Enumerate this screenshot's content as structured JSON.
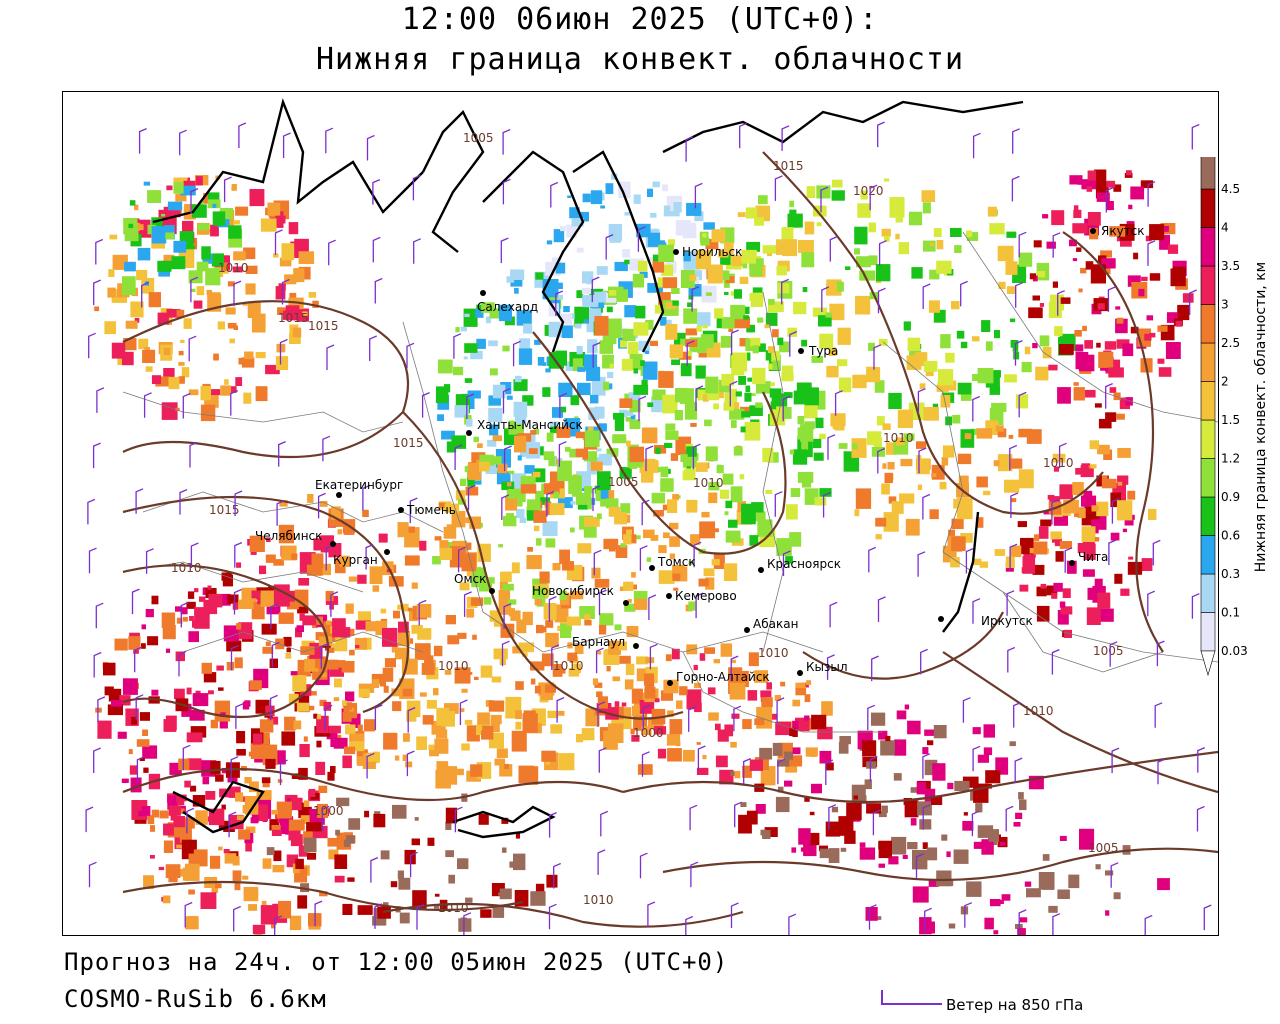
{
  "header": {
    "title_line1": "12:00 06июн 2025 (UTC+0):",
    "title_line2": "Нижняя граница конвект. облачности"
  },
  "footer": {
    "forecast": "Прогноз на 24ч. от 12:00 05июн 2025 (UTC+0)",
    "model": "COSMO-RuSib 6.6км",
    "wind_legend": "Ветер на 850 гПа"
  },
  "legend": {
    "title": "Нижняя граница конвект. облачности, км",
    "levels": [
      "0.03",
      "0.1",
      "0.3",
      "0.6",
      "0.9",
      "1.2",
      "1.5",
      "2",
      "2.5",
      "3",
      "3.5",
      "4",
      "4.5"
    ],
    "colors": [
      "#e6e6fa",
      "#a9d8f5",
      "#2aa7ee",
      "#19c219",
      "#90e03a",
      "#d6ea3c",
      "#f3c23a",
      "#f5a034",
      "#ef7a2c",
      "#ec1f5a",
      "#e0007e",
      "#b00000",
      "#9a6a5a"
    ],
    "top_color": "#8a5a4a"
  },
  "cities": [
    {
      "name": "Якутск"
    },
    {
      "name": "Норильск"
    },
    {
      "name": "Салехард"
    },
    {
      "name": "Тура"
    },
    {
      "name": "Ханты-Мансийск"
    },
    {
      "name": "Екатеринбург"
    },
    {
      "name": "Тюмень"
    },
    {
      "name": "Челябинск"
    },
    {
      "name": "Курган"
    },
    {
      "name": "Омск"
    },
    {
      "name": "Новосибирск"
    },
    {
      "name": "Томск"
    },
    {
      "name": "Кемерово"
    },
    {
      "name": "Красноярск"
    },
    {
      "name": "Абакан"
    },
    {
      "name": "Барнаул"
    },
    {
      "name": "Горно-Алтайск"
    },
    {
      "name": "Кызыл"
    },
    {
      "name": "Иркутск"
    },
    {
      "name": "Чита"
    }
  ],
  "isobars": [
    "1005",
    "1015",
    "1020",
    "1010",
    "1015",
    "1010",
    "1015",
    "1015",
    "1010",
    "1005",
    "1010",
    "1010",
    "1010",
    "1010",
    "1000",
    "1005",
    "1010",
    "1000",
    "1010",
    "1005",
    "1010",
    "1015",
    "1010"
  ],
  "colors": {
    "isobar": "#6b3a2a",
    "coast": "#000000",
    "border": "#7a7a7a",
    "wind": "#7b2fd0"
  }
}
